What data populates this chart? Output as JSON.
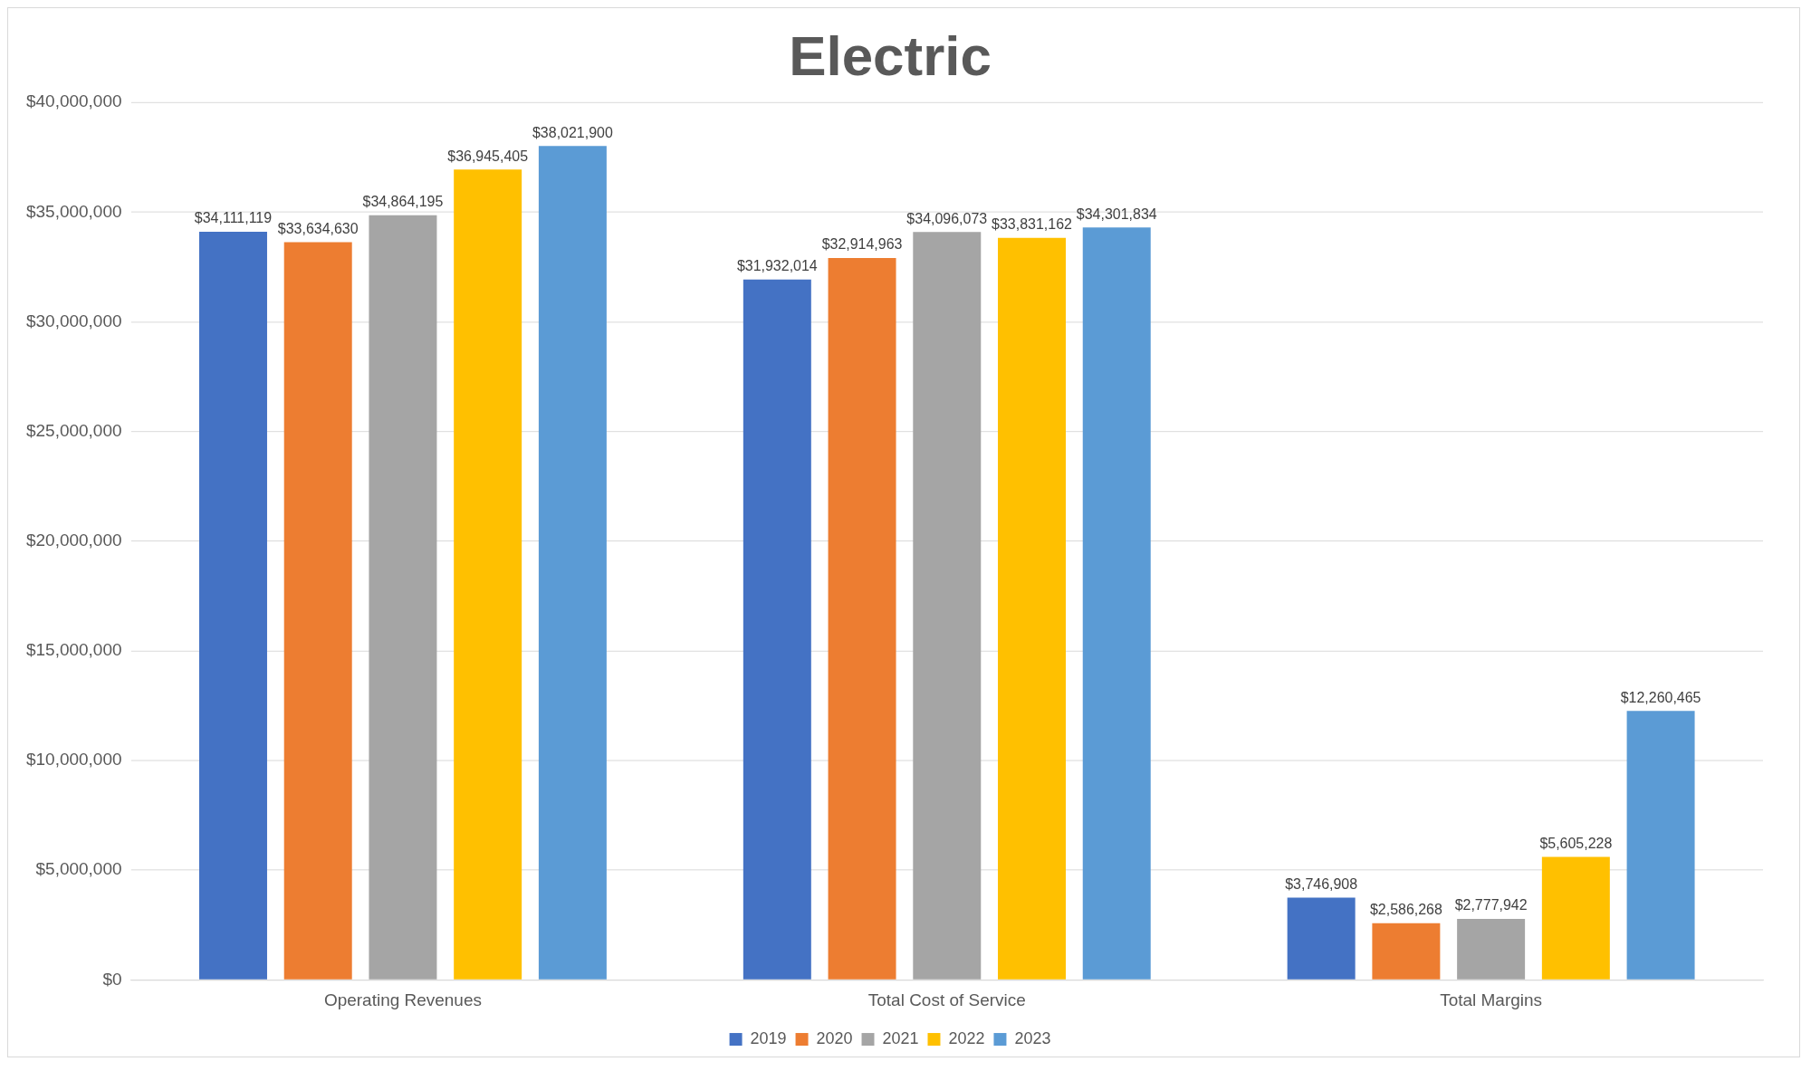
{
  "chart_data": {
    "type": "bar",
    "title": "Electric",
    "categories": [
      "Operating Revenues",
      "Total Cost of Service",
      "Total Margins"
    ],
    "series": [
      {
        "name": "2019",
        "color": "#4472c4",
        "values": [
          34111119,
          31932014,
          3746908
        ],
        "value_labels": [
          "$34,111,119",
          "$31,932,014",
          "$3,746,908"
        ]
      },
      {
        "name": "2020",
        "color": "#ed7d31",
        "values": [
          33634630,
          32914963,
          2586268
        ],
        "value_labels": [
          "$33,634,630",
          "$32,914,963",
          "$2,586,268"
        ]
      },
      {
        "name": "2021",
        "color": "#a5a5a5",
        "values": [
          34864195,
          34096073,
          2777942
        ],
        "value_labels": [
          "$34,864,195",
          "$34,096,073",
          "$2,777,942"
        ]
      },
      {
        "name": "2022",
        "color": "#ffc000",
        "values": [
          36945405,
          33831162,
          5605228
        ],
        "value_labels": [
          "$36,945,405",
          "$33,831,162",
          "$5,605,228"
        ]
      },
      {
        "name": "2023",
        "color": "#5b9bd5",
        "values": [
          38021900,
          34301834,
          12260465
        ],
        "value_labels": [
          "$38,021,900",
          "$34,301,834",
          "$12,260,465"
        ]
      }
    ],
    "ylim": [
      0,
      40000000
    ],
    "yticks": [
      {
        "value": 0,
        "label": "$0"
      },
      {
        "value": 5000000,
        "label": "$5,000,000"
      },
      {
        "value": 10000000,
        "label": "$10,000,000"
      },
      {
        "value": 15000000,
        "label": "$15,000,000"
      },
      {
        "value": 20000000,
        "label": "$20,000,000"
      },
      {
        "value": 25000000,
        "label": "$25,000,000"
      },
      {
        "value": 30000000,
        "label": "$30,000,000"
      },
      {
        "value": 35000000,
        "label": "$35,000,000"
      },
      {
        "value": 40000000,
        "label": "$40,000,000"
      }
    ],
    "grid": "y",
    "legend": "bottom"
  }
}
